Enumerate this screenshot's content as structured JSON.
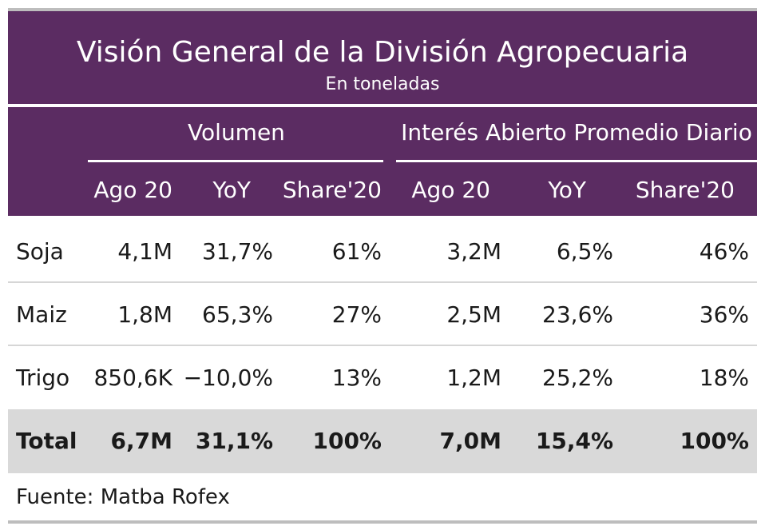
{
  "chart_data": {
    "type": "table",
    "title": "Visión General de la División Agropecuaria",
    "subtitle": "En toneladas",
    "column_groups": [
      "Volumen",
      "Interés Abierto Promedio Diario"
    ],
    "columns": [
      "Ago 20",
      "YoY",
      "Share'20",
      "Ago 20",
      "YoY",
      "Share'20"
    ],
    "rows": [
      {
        "label": "Soja",
        "values": [
          "4,1M",
          "31,7%",
          "61%",
          "3,2M",
          "6,5%",
          "46%"
        ]
      },
      {
        "label": "Maiz",
        "values": [
          "1,8M",
          "65,3%",
          "27%",
          "2,5M",
          "23,6%",
          "36%"
        ]
      },
      {
        "label": "Trigo",
        "values": [
          "850,6K",
          "−10,0%",
          "13%",
          "1,2M",
          "25,2%",
          "18%"
        ]
      }
    ],
    "total": {
      "label": "Total",
      "values": [
        "6,7M",
        "31,1%",
        "100%",
        "7,0M",
        "15,4%",
        "100%"
      ]
    },
    "source": "Fuente: Matba Rofex"
  },
  "colors": {
    "header_bg": "#5b2c62",
    "header_text": "#ffffff",
    "total_bg": "#d9d9d9",
    "separator": "#d6d6d6",
    "frame": "#bdbdbd"
  }
}
